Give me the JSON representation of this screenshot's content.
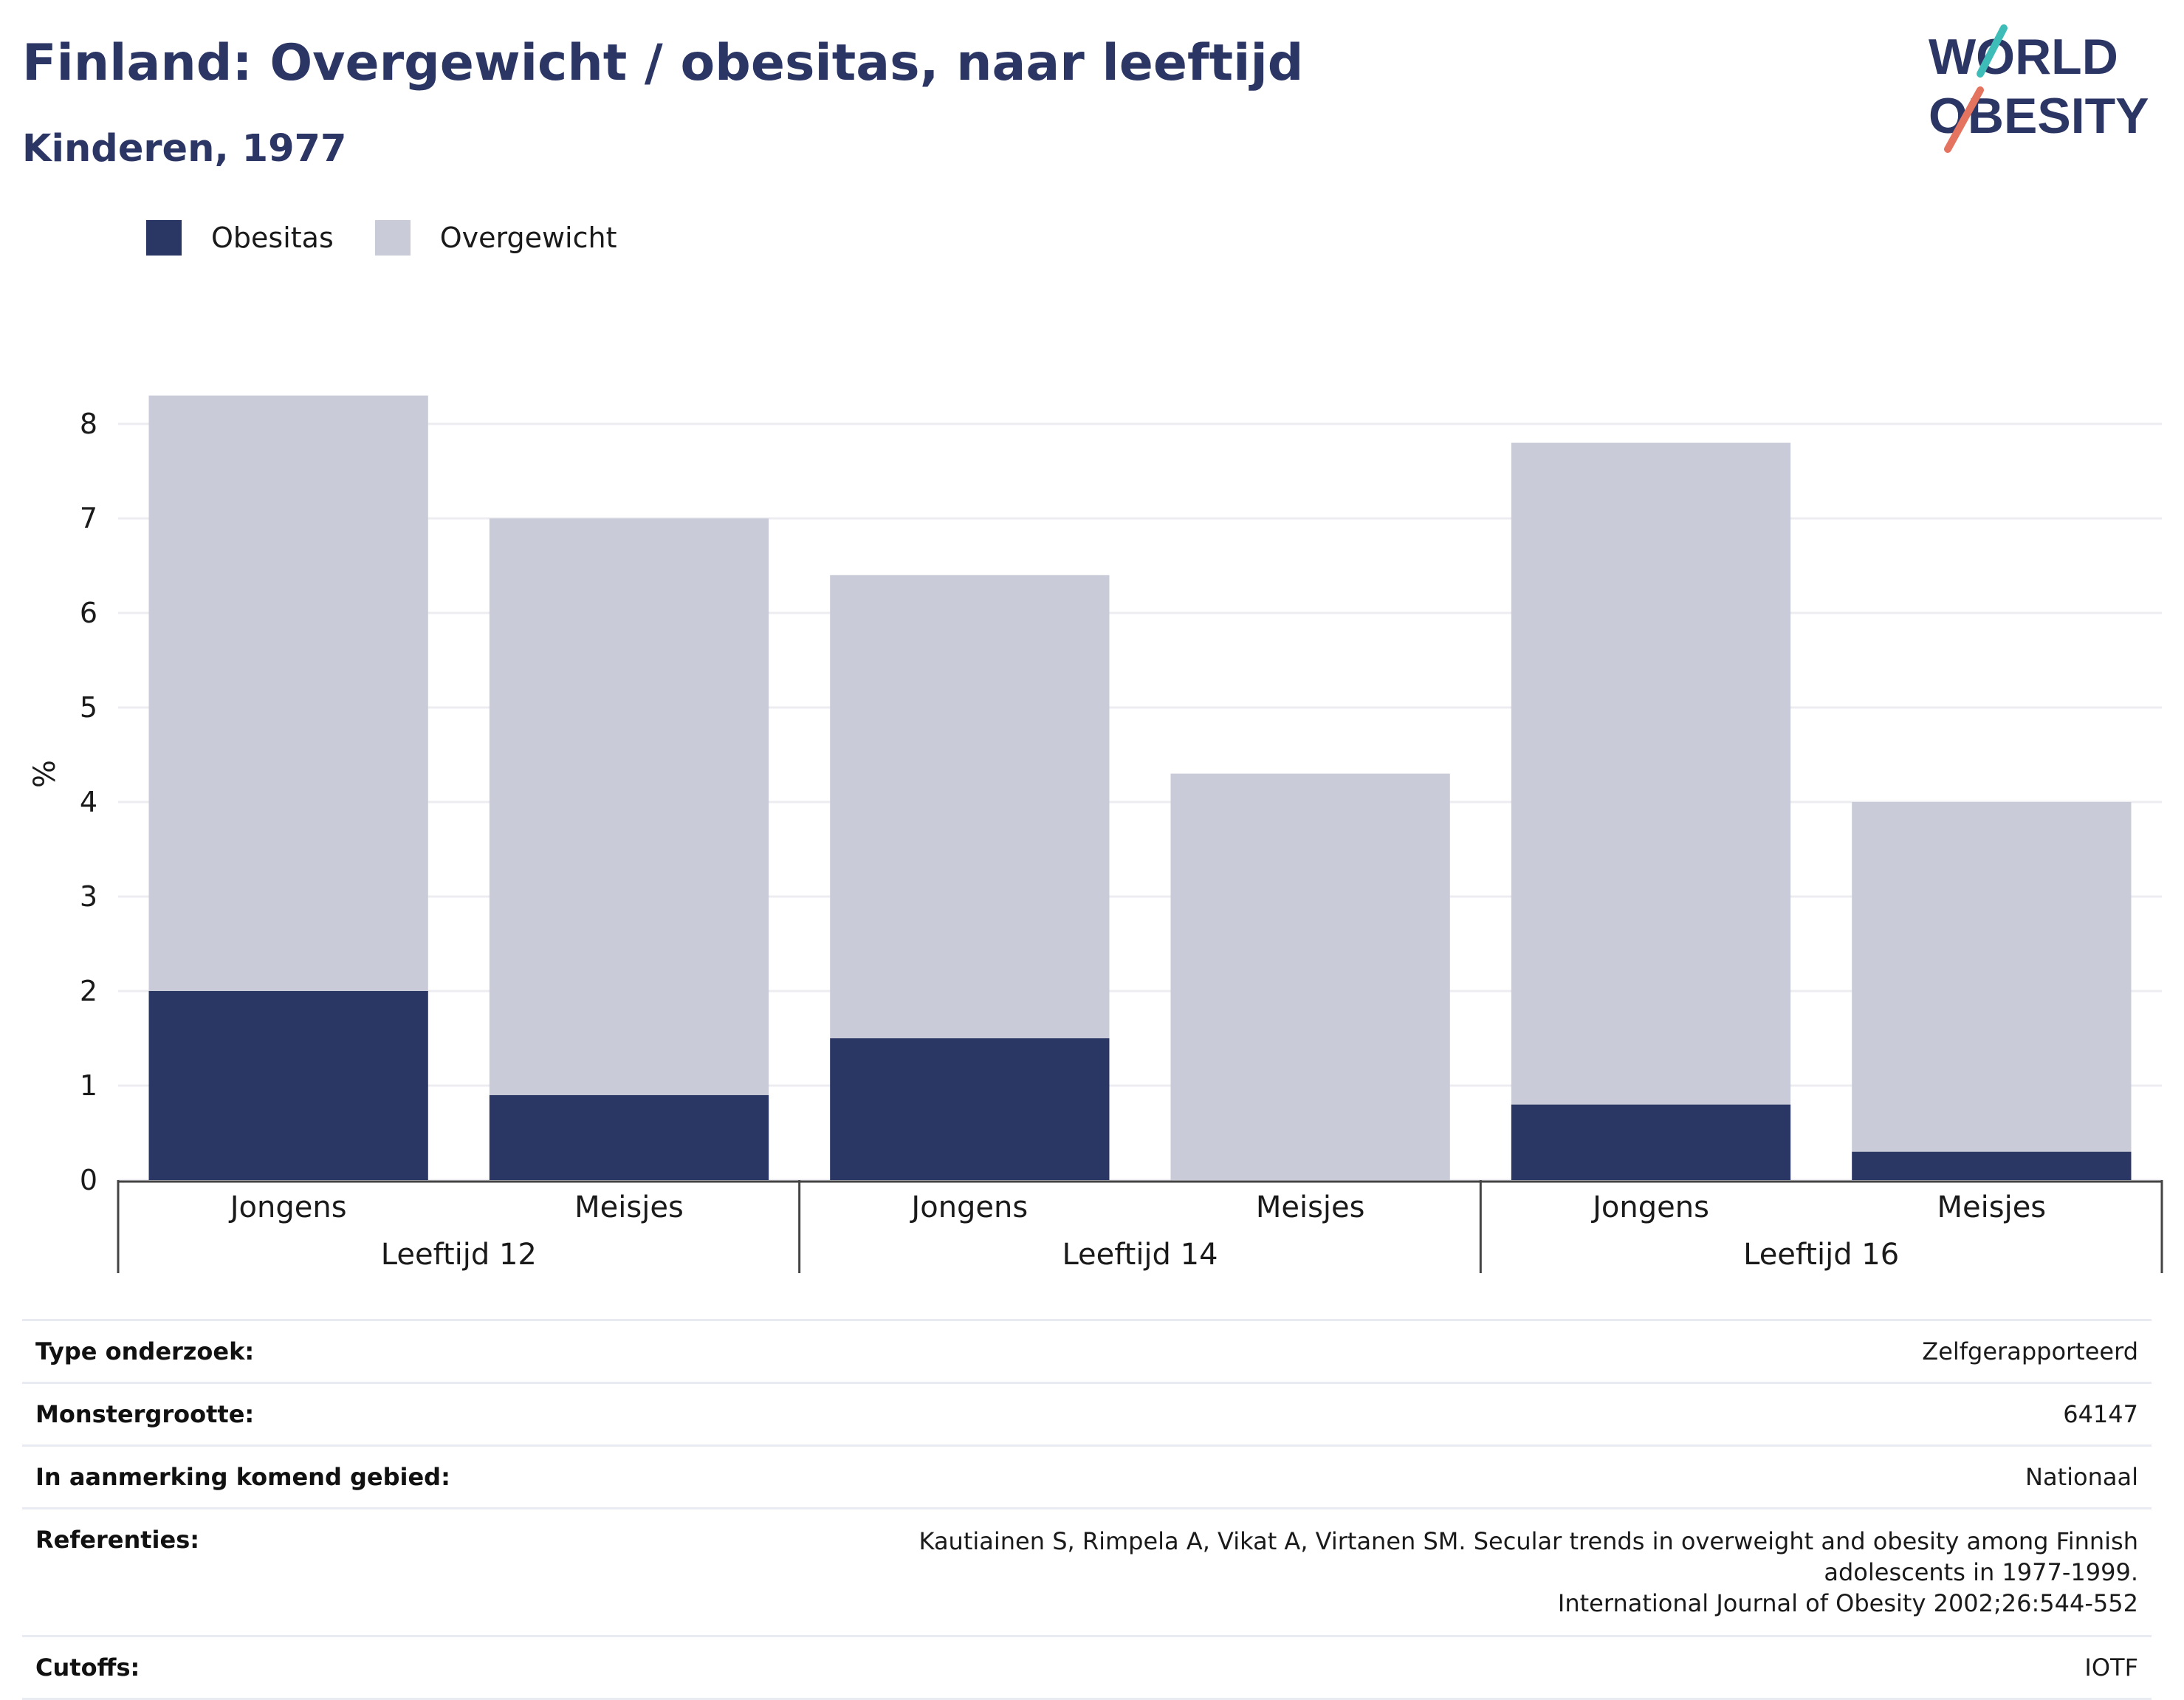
{
  "header": {
    "title": "Finland: Overgewicht / obesitas, naar leeftijd",
    "subtitle": "Kinderen, 1977",
    "logo_line1": "WORLD",
    "logo_line2": "OBESITY"
  },
  "legend": [
    {
      "label": "Obesitas",
      "color": "#2a3664"
    },
    {
      "label": "Overgewicht",
      "color": "#c9ccd8"
    }
  ],
  "chart_data": {
    "type": "bar",
    "stacked": true,
    "ylabel": "%",
    "ylim": [
      0,
      8.4
    ],
    "yticks": [
      0,
      1,
      2,
      3,
      4,
      5,
      6,
      7,
      8
    ],
    "grid": true,
    "groups": [
      {
        "label": "Leeftijd 12",
        "categories": [
          "Jongens",
          "Meisjes"
        ]
      },
      {
        "label": "Leeftijd 14",
        "categories": [
          "Jongens",
          "Meisjes"
        ]
      },
      {
        "label": "Leeftijd 16",
        "categories": [
          "Jongens",
          "Meisjes"
        ]
      }
    ],
    "categories": [
      "Jongens",
      "Meisjes",
      "Jongens",
      "Meisjes",
      "Jongens",
      "Meisjes"
    ],
    "series": [
      {
        "name": "Obesitas",
        "color": "#2a3664",
        "values": [
          2.0,
          0.9,
          1.5,
          0.0,
          0.8,
          0.3
        ]
      },
      {
        "name": "Overgewicht",
        "color": "#c9ccd8",
        "values": [
          6.3,
          6.1,
          4.9,
          4.3,
          7.0,
          3.7
        ]
      }
    ]
  },
  "info": {
    "rows": [
      {
        "key": "Type onderzoek:",
        "value": "Zelfgerapporteerd"
      },
      {
        "key": "Monstergrootte:",
        "value": "64147"
      },
      {
        "key": "In aanmerking komend gebied:",
        "value": "Nationaal"
      },
      {
        "key": "Referenties:",
        "value": "Kautiainen S, Rimpela A, Vikat A, Virtanen SM. Secular trends in overweight and obesity among Finnish adolescents in 1977-1999.",
        "value2": "International Journal of Obesity 2002;26:544-552"
      },
      {
        "key": "Cutoffs:",
        "value": "IOTF"
      }
    ]
  }
}
